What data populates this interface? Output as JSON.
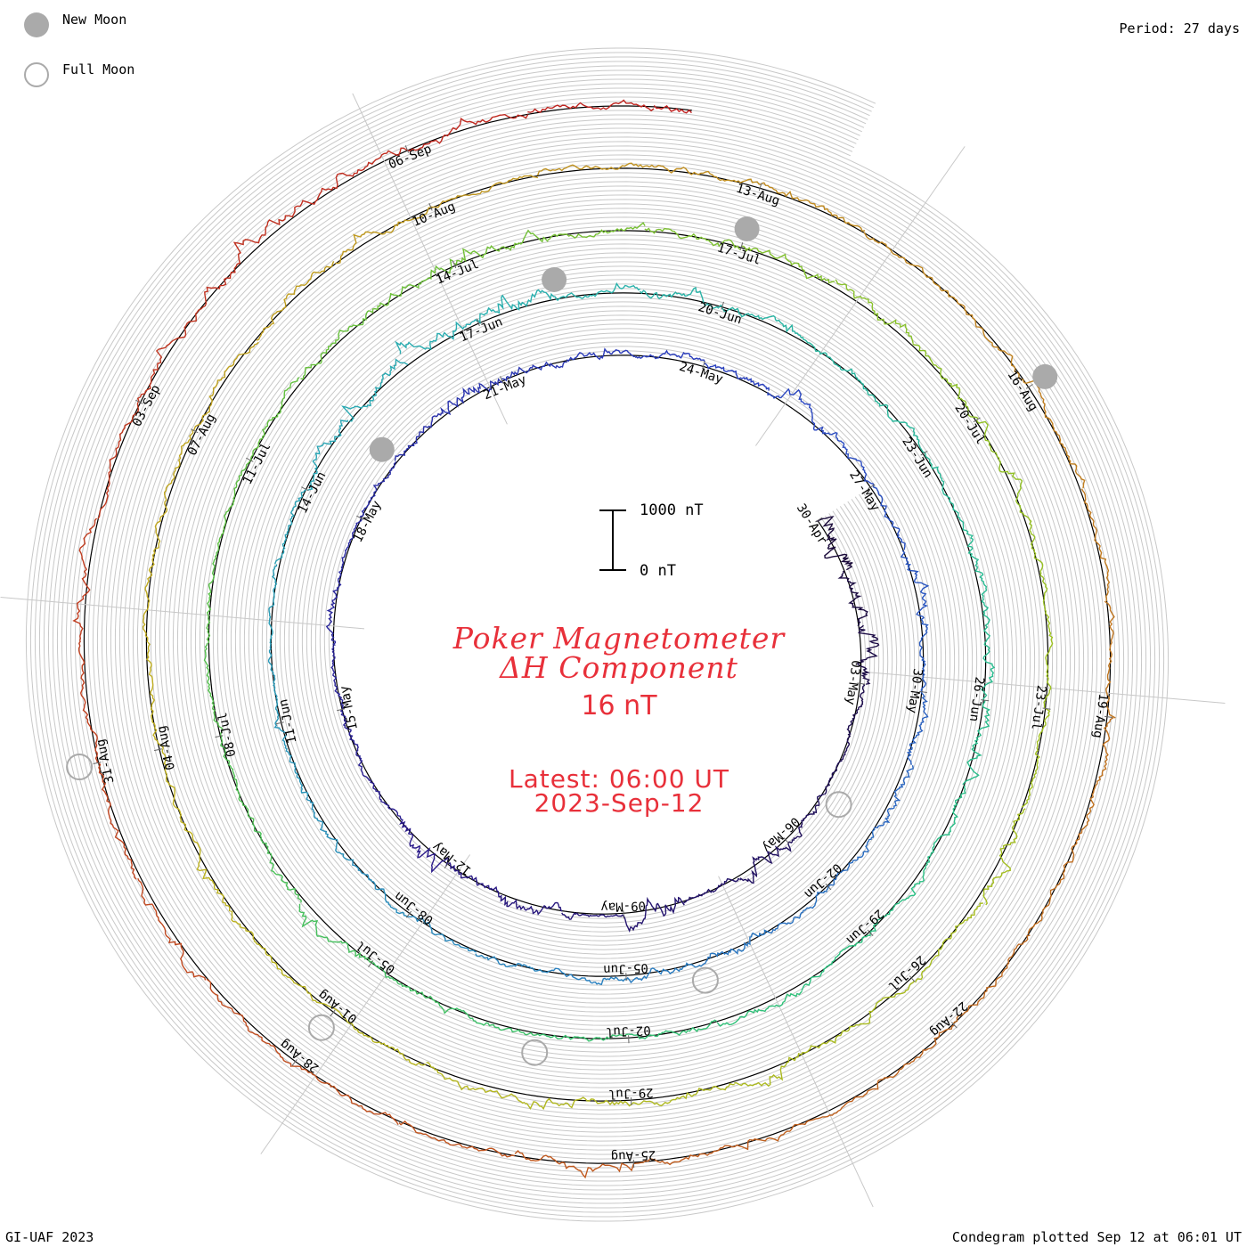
{
  "legend": {
    "new_moon_label": "New Moon",
    "full_moon_label": "Full Moon",
    "new_moon_color": "#aaaaaa",
    "full_moon_color": "#aaaaaa"
  },
  "period_label": "Period: 27 days",
  "footer": {
    "left": "GI-UAF 2023",
    "right": "Condegram plotted Sep 12 at 06:01 UT"
  },
  "center": {
    "title_line1": "Poker Magnetometer",
    "title_line2": "ΔH Component",
    "value": "16 nT",
    "latest_line1": "Latest: 06:00 UT",
    "latest_line2": "2023-Sep-12"
  },
  "scale_bar": {
    "top_label": "1000 nT",
    "bottom_label": "0 nT"
  },
  "chart_data": {
    "type": "line",
    "layout": "spiral condegram",
    "start_date": "2023-04-29",
    "end_date": "2023-09-12",
    "period_days": 27,
    "grid": true,
    "units": "nT",
    "scale_bar_nT": [
      0,
      1000
    ],
    "date_labels": [
      "30-Apr",
      "03-May",
      "06-May",
      "09-May",
      "12-May",
      "15-May",
      "18-May",
      "21-May",
      "24-May",
      "27-May",
      "30-May",
      "02-Jun",
      "05-Jun",
      "08-Jun",
      "11-Jun",
      "14-Jun",
      "17-Jun",
      "20-Jun",
      "23-Jun",
      "26-Jun",
      "29-Jun",
      "02-Jul",
      "05-Jul",
      "08-Jul",
      "11-Jul",
      "14-Jul",
      "17-Jul",
      "20-Jul",
      "23-Jul",
      "26-Jul",
      "29-Jul",
      "01-Aug",
      "04-Aug",
      "07-Aug",
      "10-Aug",
      "13-Aug",
      "16-Aug",
      "19-Aug",
      "22-Aug",
      "25-Aug",
      "28-Aug",
      "31-Aug",
      "03-Sep",
      "06-Sep"
    ],
    "new_moons": [
      "2023-05-19",
      "2023-06-18",
      "2023-07-17",
      "2023-08-16"
    ],
    "full_moons": [
      "2023-05-05",
      "2023-06-04",
      "2023-07-03",
      "2023-08-01",
      "2023-08-31"
    ],
    "daily_max_dH_nT": [
      [
        1,
        700
      ],
      [
        2,
        500
      ],
      [
        3,
        650
      ],
      [
        4,
        200
      ],
      [
        5,
        120
      ],
      [
        6,
        230
      ],
      [
        7,
        560
      ],
      [
        8,
        180
      ],
      [
        9,
        620
      ],
      [
        10,
        150
      ],
      [
        11,
        400
      ],
      [
        12,
        260
      ],
      [
        13,
        450
      ],
      [
        14,
        180
      ],
      [
        15,
        250
      ],
      [
        16,
        160
      ],
      [
        17,
        220
      ],
      [
        18,
        150
      ],
      [
        19,
        160
      ],
      [
        20,
        240
      ],
      [
        21,
        520
      ],
      [
        22,
        300
      ],
      [
        23,
        250
      ],
      [
        24,
        200
      ],
      [
        25,
        260
      ],
      [
        26,
        340
      ],
      [
        27,
        220
      ],
      [
        28,
        220
      ],
      [
        29,
        420
      ],
      [
        30,
        180
      ],
      [
        31,
        320
      ],
      [
        32,
        270
      ],
      [
        33,
        200
      ],
      [
        34,
        210
      ],
      [
        35,
        380
      ],
      [
        36,
        270
      ],
      [
        37,
        250
      ],
      [
        38,
        160
      ],
      [
        39,
        200
      ],
      [
        40,
        180
      ],
      [
        41,
        230
      ],
      [
        42,
        200
      ],
      [
        43,
        150
      ],
      [
        44,
        140
      ],
      [
        45,
        220
      ],
      [
        46,
        350
      ],
      [
        47,
        440
      ],
      [
        48,
        500
      ],
      [
        49,
        480
      ],
      [
        50,
        200
      ],
      [
        51,
        320
      ],
      [
        52,
        280
      ],
      [
        53,
        230
      ],
      [
        54,
        250
      ],
      [
        55,
        180
      ],
      [
        56,
        380
      ],
      [
        57,
        290
      ],
      [
        58,
        310
      ],
      [
        59,
        260
      ],
      [
        60,
        200
      ],
      [
        61,
        230
      ],
      [
        62,
        300
      ],
      [
        63,
        240
      ],
      [
        64,
        200
      ],
      [
        65,
        180
      ],
      [
        66,
        240
      ],
      [
        67,
        420
      ],
      [
        68,
        260
      ],
      [
        69,
        220
      ],
      [
        70,
        220
      ],
      [
        71,
        200
      ],
      [
        72,
        160
      ],
      [
        73,
        220
      ],
      [
        74,
        300
      ],
      [
        75,
        400
      ],
      [
        76,
        360
      ],
      [
        77,
        300
      ],
      [
        78,
        340
      ],
      [
        79,
        350
      ],
      [
        80,
        300
      ],
      [
        81,
        260
      ],
      [
        82,
        240
      ],
      [
        83,
        230
      ],
      [
        84,
        180
      ],
      [
        85,
        170
      ],
      [
        86,
        420
      ],
      [
        87,
        240
      ],
      [
        88,
        200
      ],
      [
        89,
        330
      ],
      [
        90,
        280
      ],
      [
        91,
        260
      ],
      [
        92,
        260
      ],
      [
        93,
        200
      ],
      [
        94,
        190
      ],
      [
        95,
        300
      ],
      [
        96,
        220
      ],
      [
        97,
        240
      ],
      [
        98,
        200
      ],
      [
        99,
        240
      ],
      [
        100,
        220
      ],
      [
        101,
        300
      ],
      [
        102,
        280
      ],
      [
        103,
        200
      ],
      [
        104,
        200
      ],
      [
        105,
        240
      ],
      [
        106,
        250
      ],
      [
        107,
        230
      ],
      [
        108,
        260
      ],
      [
        109,
        200
      ],
      [
        110,
        200
      ],
      [
        111,
        220
      ],
      [
        112,
        300
      ],
      [
        113,
        250
      ],
      [
        114,
        240
      ],
      [
        115,
        220
      ],
      [
        116,
        200
      ],
      [
        117,
        220
      ],
      [
        118,
        300
      ],
      [
        119,
        200
      ],
      [
        120,
        240
      ],
      [
        121,
        220
      ],
      [
        122,
        200
      ],
      [
        123,
        260
      ],
      [
        124,
        220
      ],
      [
        125,
        280
      ],
      [
        126,
        200
      ],
      [
        127,
        350
      ],
      [
        128,
        460
      ],
      [
        129,
        360
      ],
      [
        130,
        300
      ],
      [
        131,
        280
      ],
      [
        132,
        320
      ],
      [
        133,
        220
      ],
      [
        134,
        200
      ],
      [
        135,
        160
      ],
      [
        136,
        60
      ]
    ]
  }
}
